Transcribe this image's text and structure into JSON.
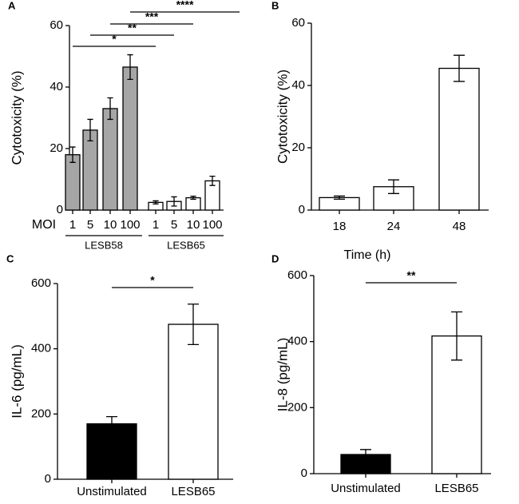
{
  "chart_data": [
    {
      "type": "bar",
      "panel": "A",
      "ylabel": "Cytotoxicity (%)",
      "xlabel": "MOI",
      "categories": [
        "1",
        "5",
        "10",
        "100",
        "1",
        "5",
        "10",
        "100"
      ],
      "values": [
        18,
        26,
        33,
        46.5,
        2.5,
        2.8,
        4,
        9.5
      ],
      "errors": [
        2.5,
        3.5,
        3.5,
        4,
        0.5,
        1.5,
        0.5,
        1.5
      ],
      "colors": [
        "#a6a6a6",
        "#a6a6a6",
        "#a6a6a6",
        "#a6a6a6",
        "#ffffff",
        "#ffffff",
        "#ffffff",
        "#ffffff"
      ],
      "groups": [
        "LESB58",
        "LESB65"
      ],
      "annotations": [
        "*",
        "**",
        "***",
        "****"
      ],
      "ylim": [
        0,
        60
      ],
      "yticks": [
        0,
        20,
        40,
        60
      ]
    },
    {
      "type": "bar",
      "panel": "B",
      "ylabel": "Cytotoxicity (%)",
      "xlabel": "Time (h)",
      "categories": [
        "18",
        "24",
        "48"
      ],
      "values": [
        4,
        7.5,
        45.5
      ],
      "errors": [
        0.5,
        2.2,
        4.2
      ],
      "colors": [
        "#ffffff",
        "#ffffff",
        "#ffffff"
      ],
      "ylim": [
        0,
        60
      ],
      "yticks": [
        0,
        20,
        40,
        60
      ]
    },
    {
      "type": "bar",
      "panel": "C",
      "ylabel": "IL-6 (pg/mL)",
      "categories": [
        "Unstimulated",
        "LESB65"
      ],
      "values": [
        170,
        475
      ],
      "errors": [
        22,
        62
      ],
      "colors": [
        "#000000",
        "#ffffff"
      ],
      "annotations": [
        "*"
      ],
      "ylim": [
        0,
        600
      ],
      "yticks": [
        0,
        200,
        400,
        600
      ]
    },
    {
      "type": "bar",
      "panel": "D",
      "ylabel": "IL-8 (pg/mL)",
      "categories": [
        "Unstimulated",
        "LESB65"
      ],
      "values": [
        58,
        417
      ],
      "errors": [
        15,
        73
      ],
      "colors": [
        "#000000",
        "#ffffff"
      ],
      "annotations": [
        "**"
      ],
      "ylim": [
        0,
        600
      ],
      "yticks": [
        0,
        200,
        400,
        600
      ]
    }
  ]
}
